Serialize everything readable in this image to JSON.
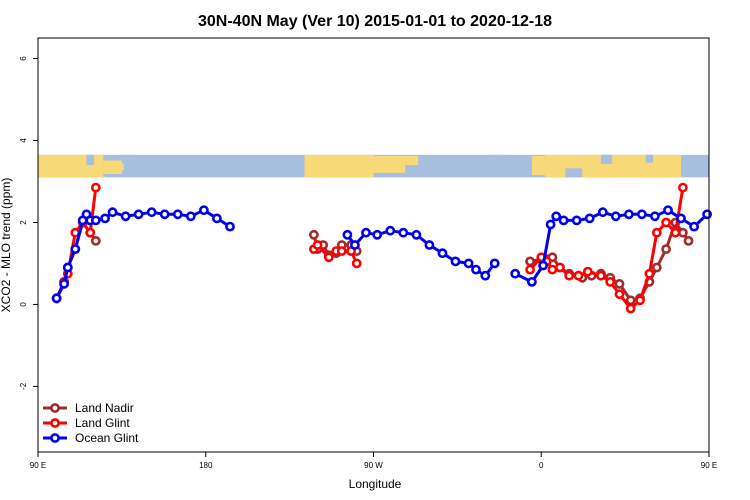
{
  "chart_data": {
    "type": "line",
    "title": "30N-40N May (Ver 10)   2015-01-01 to 2020-12-18",
    "xlabel": "Longitude",
    "ylabel": "XCO2 - MLO trend (ppm)",
    "xlim": [
      90,
      450
    ],
    "ylim": [
      -3.6,
      6.5
    ],
    "x_ticks": [
      {
        "value": 90,
        "label": "90 E"
      },
      {
        "value": 180,
        "label": "180"
      },
      {
        "value": 270,
        "label": "90 W"
      },
      {
        "value": 360,
        "label": "0"
      },
      {
        "value": 450,
        "label": "90 E"
      },
      {
        "value": 540,
        "label": "180"
      }
    ],
    "y_ticks": [
      {
        "value": -2,
        "label": "-2"
      },
      {
        "value": 0,
        "label": "0"
      },
      {
        "value": 2,
        "label": "2"
      },
      {
        "value": 4,
        "label": "4"
      },
      {
        "value": 6,
        "label": "6"
      }
    ],
    "legend_position": "bottom-left",
    "map_strip": {
      "ymin": 3.1,
      "ymax": 3.65,
      "ocean_color": "#a7bedf",
      "land_color": "#f8d97a"
    },
    "series": [
      {
        "name": "Land Nadir",
        "color": "#a52a2a",
        "segments": [
          [
            [
              100,
              0.15
            ],
            [
              104,
              0.55
            ],
            [
              106,
              0.9
            ],
            [
              110,
              1.35
            ],
            [
              114,
              2.0
            ],
            [
              118,
              1.75
            ],
            [
              121,
              1.55
            ]
          ],
          [
            [
              238,
              1.7
            ],
            [
              240,
              1.35
            ],
            [
              243,
              1.45
            ],
            [
              246,
              1.2
            ],
            [
              250,
              1.25
            ],
            [
              253,
              1.45
            ],
            [
              258,
              1.45
            ],
            [
              261,
              1.3
            ]
          ],
          [
            [
              354,
              1.05
            ],
            [
              360,
              1.1
            ],
            [
              363,
              1.1
            ],
            [
              366,
              1.15
            ],
            [
              370,
              0.9
            ],
            [
              375,
              0.75
            ],
            [
              380,
              0.7
            ],
            [
              382,
              0.65
            ],
            [
              387,
              0.7
            ],
            [
              392,
              0.75
            ],
            [
              397,
              0.65
            ],
            [
              402,
              0.5
            ],
            [
              408,
              0.1
            ],
            [
              413,
              0.15
            ],
            [
              418,
              0.55
            ],
            [
              422,
              0.9
            ],
            [
              427,
              1.35
            ],
            [
              432,
              2.0
            ],
            [
              436,
              1.75
            ],
            [
              439,
              1.55
            ]
          ]
        ]
      },
      {
        "name": "Land Glint",
        "color": "#ff0000",
        "segments": [
          [
            [
              100,
              0.15
            ],
            [
              104,
              0.55
            ],
            [
              106,
              0.75
            ],
            [
              110,
              1.75
            ],
            [
              114,
              2.0
            ],
            [
              118,
              1.75
            ],
            [
              121,
              2.85
            ]
          ],
          [
            [
              238,
              1.35
            ],
            [
              240,
              1.45
            ],
            [
              246,
              1.15
            ],
            [
              250,
              1.3
            ],
            [
              253,
              1.3
            ],
            [
              258,
              1.3
            ],
            [
              261,
              1.0
            ]
          ],
          [
            [
              354,
              0.85
            ],
            [
              360,
              1.15
            ],
            [
              363,
              1.05
            ],
            [
              366,
              0.85
            ],
            [
              370,
              0.9
            ],
            [
              375,
              0.7
            ],
            [
              380,
              0.7
            ],
            [
              385,
              0.8
            ],
            [
              392,
              0.7
            ],
            [
              397,
              0.55
            ],
            [
              402,
              0.25
            ],
            [
              408,
              -0.1
            ],
            [
              413,
              0.1
            ],
            [
              418,
              0.75
            ],
            [
              422,
              1.75
            ],
            [
              427,
              2.0
            ],
            [
              432,
              1.75
            ],
            [
              436,
              2.85
            ]
          ]
        ]
      },
      {
        "name": "Ocean Glint",
        "color": "#0000ee",
        "segments": [
          [
            [
              100,
              0.15
            ],
            [
              104,
              0.5
            ],
            [
              106,
              0.9
            ],
            [
              110,
              1.35
            ],
            [
              114,
              2.05
            ],
            [
              116,
              2.2
            ],
            [
              118,
              2.05
            ],
            [
              121,
              2.05
            ],
            [
              126,
              2.1
            ],
            [
              130,
              2.25
            ],
            [
              137,
              2.15
            ],
            [
              144,
              2.2
            ],
            [
              151,
              2.25
            ],
            [
              158,
              2.2
            ],
            [
              165,
              2.2
            ],
            [
              172,
              2.15
            ],
            [
              179,
              2.3
            ],
            [
              186,
              2.1
            ],
            [
              193,
              1.9
            ]
          ],
          [
            [
              256,
              1.7
            ],
            [
              260,
              1.45
            ],
            [
              266,
              1.75
            ],
            [
              272,
              1.7
            ],
            [
              279,
              1.8
            ],
            [
              286,
              1.75
            ],
            [
              293,
              1.7
            ],
            [
              300,
              1.45
            ],
            [
              307,
              1.25
            ],
            [
              314,
              1.05
            ],
            [
              321,
              1.0
            ],
            [
              325,
              0.85
            ],
            [
              330,
              0.7
            ],
            [
              335,
              1.0
            ]
          ],
          [
            [
              346,
              0.75
            ],
            [
              355,
              0.55
            ],
            [
              361,
              0.95
            ],
            [
              365,
              1.95
            ],
            [
              368,
              2.15
            ],
            [
              372,
              2.05
            ],
            [
              379,
              2.05
            ],
            [
              386,
              2.1
            ],
            [
              393,
              2.25
            ],
            [
              400,
              2.15
            ],
            [
              407,
              2.2
            ],
            [
              414,
              2.2
            ],
            [
              421,
              2.15
            ],
            [
              428,
              2.3
            ],
            [
              435,
              2.1
            ],
            [
              442,
              1.9
            ],
            [
              449,
              2.2
            ]
          ]
        ]
      }
    ]
  }
}
